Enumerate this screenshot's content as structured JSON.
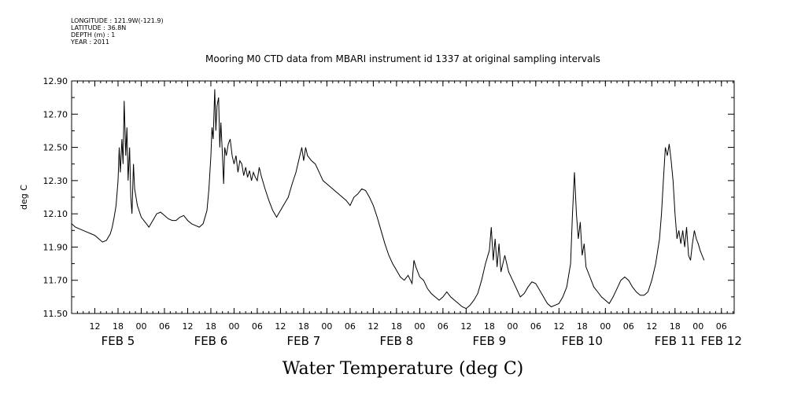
{
  "meta": {
    "longitude": "LONGITUDE : 121.9W(-121.9)",
    "latitude": "LATITUDE : 36.8N",
    "depth": "DEPTH (m) : 1",
    "year": "YEAR : 2011"
  },
  "chart_data": {
    "type": "line",
    "title": "Mooring M0 CTD data from MBARI instrument id 1337 at original sampling intervals",
    "xlabel": "Water Temperature (deg C)",
    "ylabel": "deg C",
    "xlim_hours": [
      0,
      168
    ],
    "ylim": [
      11.5,
      12.9
    ],
    "yticks": [
      "11.50",
      "11.70",
      "11.90",
      "12.10",
      "12.30",
      "12.50",
      "12.70",
      "12.90"
    ],
    "hour_ticks": [
      {
        "h": 6,
        "label": "12"
      },
      {
        "h": 12,
        "label": "18"
      },
      {
        "h": 18,
        "label": "00"
      },
      {
        "h": 24,
        "label": "06"
      },
      {
        "h": 30,
        "label": "12"
      },
      {
        "h": 36,
        "label": "18"
      },
      {
        "h": 42,
        "label": "00"
      },
      {
        "h": 48,
        "label": "06"
      },
      {
        "h": 54,
        "label": "12"
      },
      {
        "h": 60,
        "label": "18"
      },
      {
        "h": 66,
        "label": "00"
      },
      {
        "h": 72,
        "label": "06"
      },
      {
        "h": 78,
        "label": "12"
      },
      {
        "h": 84,
        "label": "18"
      },
      {
        "h": 90,
        "label": "00"
      },
      {
        "h": 96,
        "label": "06"
      },
      {
        "h": 102,
        "label": "12"
      },
      {
        "h": 108,
        "label": "18"
      },
      {
        "h": 114,
        "label": "00"
      },
      {
        "h": 120,
        "label": "06"
      },
      {
        "h": 126,
        "label": "12"
      },
      {
        "h": 132,
        "label": "18"
      },
      {
        "h": 138,
        "label": "00"
      },
      {
        "h": 144,
        "label": "06"
      },
      {
        "h": 150,
        "label": "12"
      },
      {
        "h": 156,
        "label": "18"
      },
      {
        "h": 162,
        "label": "00"
      },
      {
        "h": 168,
        "label": "06"
      }
    ],
    "day_labels": [
      {
        "h": 12,
        "label": "FEB  5"
      },
      {
        "h": 36,
        "label": "FEB  6"
      },
      {
        "h": 60,
        "label": "FEB  7"
      },
      {
        "h": 84,
        "label": "FEB  8"
      },
      {
        "h": 108,
        "label": "FEB  9"
      },
      {
        "h": 132,
        "label": "FEB 10"
      },
      {
        "h": 156,
        "label": "FEB 11"
      },
      {
        "h": 168,
        "label": "FEB 12"
      }
    ],
    "series": [
      {
        "color": "#000000",
        "points": [
          [
            0,
            12.04
          ],
          [
            1,
            12.02
          ],
          [
            2,
            12.01
          ],
          [
            3,
            12.0
          ],
          [
            4,
            11.99
          ],
          [
            5,
            11.98
          ],
          [
            6,
            11.97
          ],
          [
            7,
            11.95
          ],
          [
            8,
            11.93
          ],
          [
            9,
            11.94
          ],
          [
            10,
            11.98
          ],
          [
            10.5,
            12.02
          ],
          [
            11,
            12.08
          ],
          [
            11.5,
            12.15
          ],
          [
            12,
            12.3
          ],
          [
            12.3,
            12.5
          ],
          [
            12.6,
            12.35
          ],
          [
            13,
            12.55
          ],
          [
            13.3,
            12.4
          ],
          [
            13.6,
            12.78
          ],
          [
            14,
            12.45
          ],
          [
            14.3,
            12.62
          ],
          [
            14.6,
            12.3
          ],
          [
            15,
            12.5
          ],
          [
            15.3,
            12.2
          ],
          [
            15.6,
            12.1
          ],
          [
            16,
            12.4
          ],
          [
            16.3,
            12.25
          ],
          [
            17,
            12.15
          ],
          [
            18,
            12.08
          ],
          [
            19,
            12.05
          ],
          [
            20,
            12.02
          ],
          [
            21,
            12.06
          ],
          [
            22,
            12.1
          ],
          [
            23,
            12.11
          ],
          [
            24,
            12.09
          ],
          [
            25,
            12.07
          ],
          [
            26,
            12.06
          ],
          [
            27,
            12.06
          ],
          [
            28,
            12.08
          ],
          [
            29,
            12.09
          ],
          [
            30,
            12.06
          ],
          [
            31,
            12.04
          ],
          [
            32,
            12.03
          ],
          [
            33,
            12.02
          ],
          [
            34,
            12.04
          ],
          [
            35,
            12.12
          ],
          [
            35.5,
            12.25
          ],
          [
            36,
            12.45
          ],
          [
            36.3,
            12.62
          ],
          [
            36.6,
            12.55
          ],
          [
            37,
            12.85
          ],
          [
            37.3,
            12.6
          ],
          [
            37.6,
            12.75
          ],
          [
            38,
            12.8
          ],
          [
            38.3,
            12.5
          ],
          [
            38.6,
            12.65
          ],
          [
            39,
            12.45
          ],
          [
            39.3,
            12.28
          ],
          [
            39.6,
            12.5
          ],
          [
            40,
            12.45
          ],
          [
            40.5,
            12.52
          ],
          [
            41,
            12.55
          ],
          [
            41.5,
            12.45
          ],
          [
            42,
            12.4
          ],
          [
            42.5,
            12.45
          ],
          [
            43,
            12.35
          ],
          [
            43.5,
            12.42
          ],
          [
            44,
            12.4
          ],
          [
            44.5,
            12.33
          ],
          [
            45,
            12.38
          ],
          [
            45.5,
            12.32
          ],
          [
            46,
            12.36
          ],
          [
            46.5,
            12.3
          ],
          [
            47,
            12.35
          ],
          [
            47.5,
            12.32
          ],
          [
            48,
            12.3
          ],
          [
            48.5,
            12.38
          ],
          [
            49,
            12.33
          ],
          [
            50,
            12.25
          ],
          [
            51,
            12.18
          ],
          [
            52,
            12.12
          ],
          [
            53,
            12.08
          ],
          [
            54,
            12.12
          ],
          [
            55,
            12.16
          ],
          [
            56,
            12.2
          ],
          [
            57,
            12.28
          ],
          [
            58,
            12.35
          ],
          [
            59,
            12.45
          ],
          [
            59.5,
            12.5
          ],
          [
            60,
            12.42
          ],
          [
            60.5,
            12.5
          ],
          [
            61,
            12.45
          ],
          [
            62,
            12.42
          ],
          [
            63,
            12.4
          ],
          [
            64,
            12.35
          ],
          [
            65,
            12.3
          ],
          [
            66,
            12.28
          ],
          [
            67,
            12.26
          ],
          [
            68,
            12.24
          ],
          [
            69,
            12.22
          ],
          [
            70,
            12.2
          ],
          [
            71,
            12.18
          ],
          [
            72,
            12.15
          ],
          [
            73,
            12.2
          ],
          [
            74,
            12.22
          ],
          [
            75,
            12.25
          ],
          [
            76,
            12.24
          ],
          [
            77,
            12.2
          ],
          [
            78,
            12.15
          ],
          [
            79,
            12.08
          ],
          [
            80,
            12.0
          ],
          [
            81,
            11.92
          ],
          [
            82,
            11.85
          ],
          [
            83,
            11.8
          ],
          [
            84,
            11.76
          ],
          [
            85,
            11.72
          ],
          [
            86,
            11.7
          ],
          [
            87,
            11.73
          ],
          [
            88,
            11.68
          ],
          [
            88.5,
            11.82
          ],
          [
            89,
            11.78
          ],
          [
            90,
            11.72
          ],
          [
            91,
            11.7
          ],
          [
            92,
            11.65
          ],
          [
            93,
            11.62
          ],
          [
            94,
            11.6
          ],
          [
            95,
            11.58
          ],
          [
            96,
            11.6
          ],
          [
            97,
            11.63
          ],
          [
            98,
            11.6
          ],
          [
            99,
            11.58
          ],
          [
            100,
            11.56
          ],
          [
            101,
            11.54
          ],
          [
            102,
            11.53
          ],
          [
            103,
            11.55
          ],
          [
            104,
            11.58
          ],
          [
            105,
            11.62
          ],
          [
            106,
            11.7
          ],
          [
            107,
            11.8
          ],
          [
            108,
            11.88
          ],
          [
            108.5,
            12.02
          ],
          [
            109,
            11.82
          ],
          [
            109.5,
            11.95
          ],
          [
            110,
            11.78
          ],
          [
            110.5,
            11.92
          ],
          [
            111,
            11.75
          ],
          [
            112,
            11.85
          ],
          [
            113,
            11.75
          ],
          [
            114,
            11.7
          ],
          [
            115,
            11.65
          ],
          [
            116,
            11.6
          ],
          [
            117,
            11.62
          ],
          [
            118,
            11.66
          ],
          [
            119,
            11.69
          ],
          [
            120,
            11.68
          ],
          [
            121,
            11.64
          ],
          [
            122,
            11.6
          ],
          [
            123,
            11.56
          ],
          [
            124,
            11.54
          ],
          [
            125,
            11.55
          ],
          [
            126,
            11.56
          ],
          [
            127,
            11.6
          ],
          [
            128,
            11.66
          ],
          [
            129,
            11.8
          ],
          [
            129.5,
            12.1
          ],
          [
            130,
            12.35
          ],
          [
            130.5,
            12.1
          ],
          [
            131,
            11.95
          ],
          [
            131.5,
            12.05
          ],
          [
            132,
            11.85
          ],
          [
            132.5,
            11.92
          ],
          [
            133,
            11.78
          ],
          [
            134,
            11.72
          ],
          [
            135,
            11.66
          ],
          [
            136,
            11.63
          ],
          [
            137,
            11.6
          ],
          [
            138,
            11.58
          ],
          [
            139,
            11.56
          ],
          [
            140,
            11.6
          ],
          [
            141,
            11.65
          ],
          [
            142,
            11.7
          ],
          [
            143,
            11.72
          ],
          [
            144,
            11.7
          ],
          [
            145,
            11.66
          ],
          [
            146,
            11.63
          ],
          [
            147,
            11.61
          ],
          [
            148,
            11.61
          ],
          [
            149,
            11.63
          ],
          [
            150,
            11.7
          ],
          [
            151,
            11.8
          ],
          [
            152,
            11.95
          ],
          [
            152.5,
            12.1
          ],
          [
            153,
            12.3
          ],
          [
            153.5,
            12.5
          ],
          [
            154,
            12.45
          ],
          [
            154.5,
            12.52
          ],
          [
            155,
            12.42
          ],
          [
            155.5,
            12.3
          ],
          [
            156,
            12.1
          ],
          [
            156.5,
            11.95
          ],
          [
            157,
            12.0
          ],
          [
            157.5,
            11.92
          ],
          [
            158,
            12.0
          ],
          [
            158.5,
            11.9
          ],
          [
            159,
            12.02
          ],
          [
            159.5,
            11.85
          ],
          [
            160,
            11.82
          ],
          [
            160.5,
            11.92
          ],
          [
            161,
            12.0
          ],
          [
            161.5,
            11.95
          ],
          [
            162,
            11.92
          ],
          [
            162.5,
            11.88
          ],
          [
            163,
            11.85
          ],
          [
            163.5,
            11.82
          ]
        ]
      }
    ]
  }
}
